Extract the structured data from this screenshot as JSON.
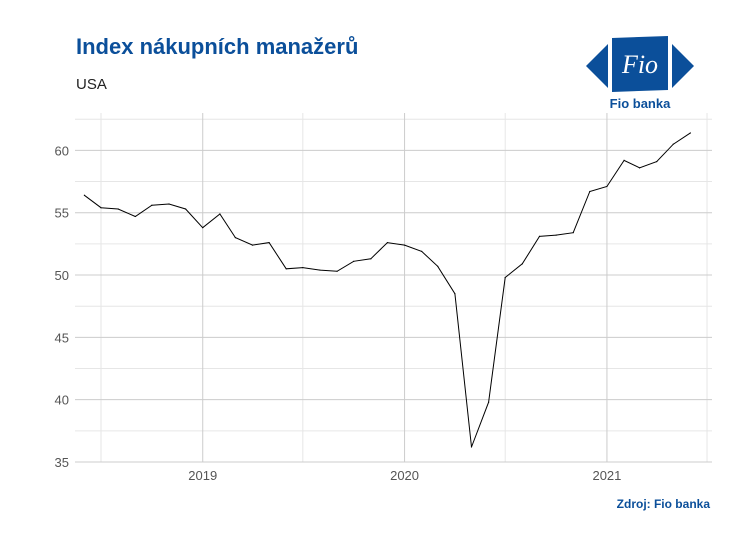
{
  "header": {
    "title": "Index nákupních manažerů",
    "subtitle": "USA"
  },
  "logo": {
    "word": "Fio",
    "name": "Fio banka",
    "color": "#0b4f9a"
  },
  "footer": {
    "source": "Zdroj: Fio banka"
  },
  "chart_data": {
    "type": "line",
    "title": "Index nákupních manažerů",
    "subtitle": "USA",
    "xlabel": "",
    "ylabel": "",
    "ylim": [
      35,
      63
    ],
    "xlim": [
      "2018-05-15",
      "2021-07-10"
    ],
    "grid": true,
    "legend": "none",
    "line_color": "#000000",
    "y_ticks": [
      35,
      40,
      45,
      50,
      55,
      60
    ],
    "x_ticks": [
      {
        "date": "2019-01-01",
        "label": "2019"
      },
      {
        "date": "2020-01-01",
        "label": "2020"
      },
      {
        "date": "2021-01-01",
        "label": "2021"
      }
    ],
    "series": [
      {
        "x": [
          "2018-06-01",
          "2018-07-01",
          "2018-08-01",
          "2018-09-01",
          "2018-10-01",
          "2018-11-01",
          "2018-12-01",
          "2019-01-01",
          "2019-02-01",
          "2019-03-01",
          "2019-04-01",
          "2019-05-01",
          "2019-06-01",
          "2019-07-01",
          "2019-08-01",
          "2019-09-01",
          "2019-10-01",
          "2019-11-01",
          "2019-12-01",
          "2020-01-01",
          "2020-02-01",
          "2020-03-01",
          "2020-04-01",
          "2020-05-01",
          "2020-06-01",
          "2020-07-01",
          "2020-08-01",
          "2020-09-01",
          "2020-10-01",
          "2020-11-01",
          "2020-12-01",
          "2021-01-01",
          "2021-02-01",
          "2021-03-01",
          "2021-04-01",
          "2021-05-01",
          "2021-06-01"
        ],
        "y": [
          56.4,
          55.4,
          55.3,
          54.7,
          55.6,
          55.7,
          55.3,
          53.8,
          54.9,
          53.0,
          52.4,
          52.6,
          50.5,
          50.6,
          50.4,
          50.3,
          51.1,
          51.3,
          52.6,
          52.4,
          51.9,
          50.7,
          48.5,
          36.2,
          39.8,
          49.8,
          50.9,
          53.1,
          53.2,
          53.4,
          56.7,
          57.1,
          59.2,
          58.6,
          59.1,
          60.5,
          61.4
        ]
      }
    ]
  }
}
